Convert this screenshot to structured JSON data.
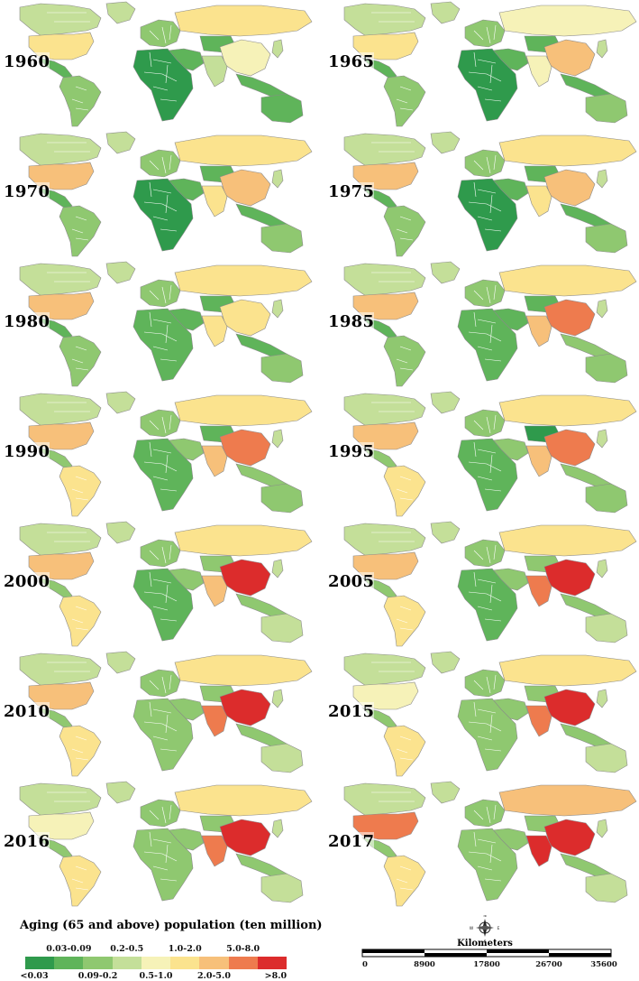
{
  "legend": {
    "title": "Aging (65 and above) population (ten million)",
    "classes": [
      {
        "label": "<0.03",
        "color": "#2f9a4c",
        "row": "bottom"
      },
      {
        "label": "0.03-0.09",
        "color": "#5fb45a",
        "row": "top"
      },
      {
        "label": "0.09-0.2",
        "color": "#8fc870",
        "row": "bottom"
      },
      {
        "label": "0.2-0.5",
        "color": "#c4df99",
        "row": "top"
      },
      {
        "label": "0.5-1.0",
        "color": "#f6f2b8",
        "row": "bottom"
      },
      {
        "label": "1.0-2.0",
        "color": "#fbe38e",
        "row": "top"
      },
      {
        "label": "2.0-5.0",
        "color": "#f7c07a",
        "row": "bottom"
      },
      {
        "label": "5.0-8.0",
        "color": "#ee7b4e",
        "row": "top"
      },
      {
        "label": ">8.0",
        "color": "#dc2c2c",
        "row": "bottom"
      }
    ]
  },
  "scale_bar": {
    "title": "Kilometers",
    "ticks": [
      "0",
      "8900",
      "17800",
      "26700",
      "35600"
    ]
  },
  "compass": {
    "north": "N",
    "south": "S",
    "east": "E",
    "west": "W"
  },
  "regions": [
    "north_america",
    "greenland",
    "usa",
    "mexico_central",
    "south_america",
    "europe",
    "russia",
    "middle_east",
    "africa",
    "central_asia",
    "china",
    "india",
    "se_asia",
    "japan",
    "australia"
  ],
  "panels": [
    {
      "year": "1960",
      "colors": {
        "north_america": "#c4df99",
        "greenland": "#c4df99",
        "usa": "#fbe38e",
        "mexico_central": "#5fb45a",
        "south_america": "#8fc870",
        "europe": "#8fc870",
        "russia": "#fbe38e",
        "middle_east": "#5fb45a",
        "africa": "#2f9a4c",
        "central_asia": "#5fb45a",
        "china": "#f6f2b8",
        "india": "#c4df99",
        "se_asia": "#5fb45a",
        "japan": "#c4df99",
        "australia": "#5fb45a"
      }
    },
    {
      "year": "1965",
      "colors": {
        "north_america": "#c4df99",
        "greenland": "#c4df99",
        "usa": "#fbe38e",
        "mexico_central": "#5fb45a",
        "south_america": "#8fc870",
        "europe": "#8fc870",
        "russia": "#f6f2b8",
        "middle_east": "#5fb45a",
        "africa": "#2f9a4c",
        "central_asia": "#5fb45a",
        "china": "#f7c07a",
        "india": "#f6f2b8",
        "se_asia": "#5fb45a",
        "japan": "#c4df99",
        "australia": "#8fc870"
      }
    },
    {
      "year": "1970",
      "colors": {
        "north_america": "#c4df99",
        "greenland": "#c4df99",
        "usa": "#f7c07a",
        "mexico_central": "#5fb45a",
        "south_america": "#8fc870",
        "europe": "#8fc870",
        "russia": "#fbe38e",
        "middle_east": "#5fb45a",
        "africa": "#2f9a4c",
        "central_asia": "#5fb45a",
        "china": "#f7c07a",
        "india": "#fbe38e",
        "se_asia": "#5fb45a",
        "japan": "#c4df99",
        "australia": "#8fc870"
      }
    },
    {
      "year": "1975",
      "colors": {
        "north_america": "#c4df99",
        "greenland": "#c4df99",
        "usa": "#f7c07a",
        "mexico_central": "#5fb45a",
        "south_america": "#8fc870",
        "europe": "#8fc870",
        "russia": "#fbe38e",
        "middle_east": "#5fb45a",
        "africa": "#2f9a4c",
        "central_asia": "#5fb45a",
        "china": "#f7c07a",
        "india": "#fbe38e",
        "se_asia": "#5fb45a",
        "japan": "#c4df99",
        "australia": "#8fc870"
      }
    },
    {
      "year": "1980",
      "colors": {
        "north_america": "#c4df99",
        "greenland": "#c4df99",
        "usa": "#f7c07a",
        "mexico_central": "#5fb45a",
        "south_america": "#8fc870",
        "europe": "#8fc870",
        "russia": "#fbe38e",
        "middle_east": "#5fb45a",
        "africa": "#5fb45a",
        "central_asia": "#5fb45a",
        "china": "#fbe38e",
        "india": "#fbe38e",
        "se_asia": "#5fb45a",
        "japan": "#c4df99",
        "australia": "#8fc870"
      }
    },
    {
      "year": "1985",
      "colors": {
        "north_america": "#c4df99",
        "greenland": "#c4df99",
        "usa": "#f7c07a",
        "mexico_central": "#5fb45a",
        "south_america": "#8fc870",
        "europe": "#8fc870",
        "russia": "#fbe38e",
        "middle_east": "#5fb45a",
        "africa": "#5fb45a",
        "central_asia": "#5fb45a",
        "china": "#ee7b4e",
        "india": "#f7c07a",
        "se_asia": "#8fc870",
        "japan": "#c4df99",
        "australia": "#8fc870"
      }
    },
    {
      "year": "1990",
      "colors": {
        "north_america": "#c4df99",
        "greenland": "#c4df99",
        "usa": "#f7c07a",
        "mexico_central": "#8fc870",
        "south_america": "#fbe38e",
        "europe": "#8fc870",
        "russia": "#fbe38e",
        "middle_east": "#8fc870",
        "africa": "#5fb45a",
        "central_asia": "#5fb45a",
        "china": "#ee7b4e",
        "india": "#f7c07a",
        "se_asia": "#8fc870",
        "japan": "#c4df99",
        "australia": "#8fc870"
      }
    },
    {
      "year": "1995",
      "colors": {
        "north_america": "#c4df99",
        "greenland": "#c4df99",
        "usa": "#f7c07a",
        "mexico_central": "#8fc870",
        "south_america": "#fbe38e",
        "europe": "#8fc870",
        "russia": "#fbe38e",
        "middle_east": "#8fc870",
        "africa": "#5fb45a",
        "central_asia": "#2f9a4c",
        "china": "#ee7b4e",
        "india": "#f7c07a",
        "se_asia": "#8fc870",
        "japan": "#c4df99",
        "australia": "#8fc870"
      }
    },
    {
      "year": "2000",
      "colors": {
        "north_america": "#c4df99",
        "greenland": "#c4df99",
        "usa": "#f7c07a",
        "mexico_central": "#8fc870",
        "south_america": "#fbe38e",
        "europe": "#8fc870",
        "russia": "#fbe38e",
        "middle_east": "#8fc870",
        "africa": "#5fb45a",
        "central_asia": "#8fc870",
        "china": "#dc2c2c",
        "india": "#f7c07a",
        "se_asia": "#8fc870",
        "japan": "#c4df99",
        "australia": "#c4df99"
      }
    },
    {
      "year": "2005",
      "colors": {
        "north_america": "#c4df99",
        "greenland": "#c4df99",
        "usa": "#f7c07a",
        "mexico_central": "#8fc870",
        "south_america": "#fbe38e",
        "europe": "#8fc870",
        "russia": "#fbe38e",
        "middle_east": "#8fc870",
        "africa": "#5fb45a",
        "central_asia": "#8fc870",
        "china": "#dc2c2c",
        "india": "#ee7b4e",
        "se_asia": "#8fc870",
        "japan": "#c4df99",
        "australia": "#c4df99"
      }
    },
    {
      "year": "2010",
      "colors": {
        "north_america": "#c4df99",
        "greenland": "#c4df99",
        "usa": "#f7c07a",
        "mexico_central": "#8fc870",
        "south_america": "#fbe38e",
        "europe": "#8fc870",
        "russia": "#fbe38e",
        "middle_east": "#8fc870",
        "africa": "#8fc870",
        "central_asia": "#8fc870",
        "china": "#dc2c2c",
        "india": "#ee7b4e",
        "se_asia": "#8fc870",
        "japan": "#c4df99",
        "australia": "#c4df99"
      }
    },
    {
      "year": "2015",
      "colors": {
        "north_america": "#c4df99",
        "greenland": "#c4df99",
        "usa": "#f6f2b8",
        "mexico_central": "#8fc870",
        "south_america": "#fbe38e",
        "europe": "#8fc870",
        "russia": "#fbe38e",
        "middle_east": "#8fc870",
        "africa": "#8fc870",
        "central_asia": "#8fc870",
        "china": "#dc2c2c",
        "india": "#ee7b4e",
        "se_asia": "#8fc870",
        "japan": "#c4df99",
        "australia": "#c4df99"
      }
    },
    {
      "year": "2016",
      "colors": {
        "north_america": "#c4df99",
        "greenland": "#c4df99",
        "usa": "#f6f2b8",
        "mexico_central": "#8fc870",
        "south_america": "#fbe38e",
        "europe": "#8fc870",
        "russia": "#fbe38e",
        "middle_east": "#8fc870",
        "africa": "#8fc870",
        "central_asia": "#8fc870",
        "china": "#dc2c2c",
        "india": "#ee7b4e",
        "se_asia": "#8fc870",
        "japan": "#c4df99",
        "australia": "#c4df99"
      }
    },
    {
      "year": "2017",
      "colors": {
        "north_america": "#c4df99",
        "greenland": "#c4df99",
        "usa": "#ee7b4e",
        "mexico_central": "#8fc870",
        "south_america": "#fbe38e",
        "europe": "#8fc870",
        "russia": "#f7c07a",
        "middle_east": "#8fc870",
        "africa": "#8fc870",
        "central_asia": "#8fc870",
        "china": "#dc2c2c",
        "india": "#dc2c2c",
        "se_asia": "#8fc870",
        "japan": "#c4df99",
        "australia": "#c4df99"
      }
    }
  ]
}
